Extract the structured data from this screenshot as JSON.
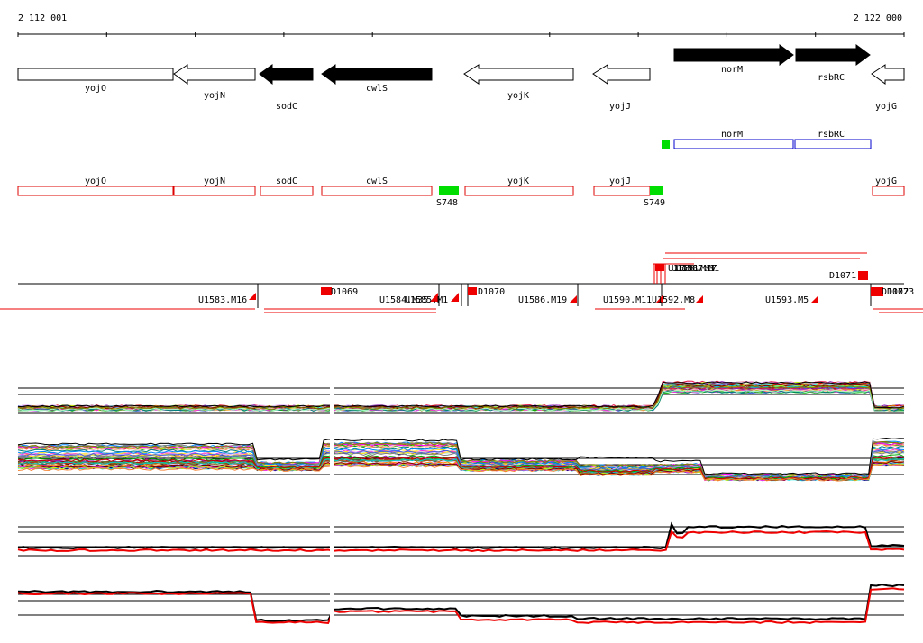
{
  "genome_browser": {
    "coordinates": {
      "start": "2 112 001",
      "end": "2 122 000"
    },
    "ruler": {
      "tick_count": 11
    },
    "gene_track": {
      "genes": [
        {
          "name": "yojO",
          "strand": "-",
          "fill": "white"
        },
        {
          "name": "yojN",
          "strand": "-",
          "fill": "white"
        },
        {
          "name": "sodC",
          "strand": "-",
          "fill": "black"
        },
        {
          "name": "cwlS",
          "strand": "-",
          "fill": "black"
        },
        {
          "name": "yojK",
          "strand": "-",
          "fill": "white"
        },
        {
          "name": "yojJ",
          "strand": "-",
          "fill": "white"
        },
        {
          "name": "norM",
          "strand": "+",
          "fill": "black"
        },
        {
          "name": "rsbRC",
          "strand": "+",
          "fill": "black"
        },
        {
          "name": "yojG",
          "strand": "-",
          "fill": "white"
        }
      ]
    },
    "forward_features": [
      {
        "name": "norM",
        "color": "#0000cc"
      },
      {
        "name": "rsbRC",
        "color": "#0000cc"
      }
    ],
    "reverse_features": [
      {
        "name": "yojO",
        "color": "#dd0000"
      },
      {
        "name": "yojN",
        "color": "#dd0000"
      },
      {
        "name": "sodC",
        "color": "#dd0000"
      },
      {
        "name": "cwlS",
        "color": "#dd0000"
      },
      {
        "name": "yojK",
        "color": "#dd0000"
      },
      {
        "name": "yojJ",
        "color": "#dd0000"
      },
      {
        "name": "yojG",
        "color": "#dd0000"
      }
    ],
    "srna_markers": [
      {
        "name": "S748"
      },
      {
        "name": "S749"
      }
    ],
    "transcription_units": [
      {
        "name": "U1583.M16"
      },
      {
        "name": "U1584.M35"
      },
      {
        "name": "U1585.M1"
      },
      {
        "name": "U1586.M19"
      },
      {
        "name": "U1590.M11"
      },
      {
        "name": "U1592.M8"
      },
      {
        "name": "U1593.M5"
      }
    ],
    "downshift_labels": [
      {
        "name": "D1069"
      },
      {
        "name": "D1070"
      },
      {
        "name": "D1071"
      },
      {
        "name": "D1072"
      }
    ],
    "overlapping_labels": [
      {
        "name": "U1588.M17"
      },
      {
        "name": "U1591.M1"
      },
      {
        "name": "U1587.M1"
      },
      {
        "name": "D1073"
      }
    ],
    "expression_panels": [
      {
        "name": "multi-condition forward",
        "type": "multi"
      },
      {
        "name": "multi-condition reverse",
        "type": "multi"
      },
      {
        "name": "summary forward",
        "type": "summary"
      },
      {
        "name": "summary reverse",
        "type": "summary"
      }
    ],
    "colors": {
      "gene_fill_dark": "#000000",
      "forward_outline": "#0000cc",
      "reverse_outline": "#dd0000",
      "srna_marker": "#00dd00",
      "tu_marker": "#ee0000",
      "summary_line_a": "#000000",
      "summary_line_b": "#ee0000"
    }
  }
}
